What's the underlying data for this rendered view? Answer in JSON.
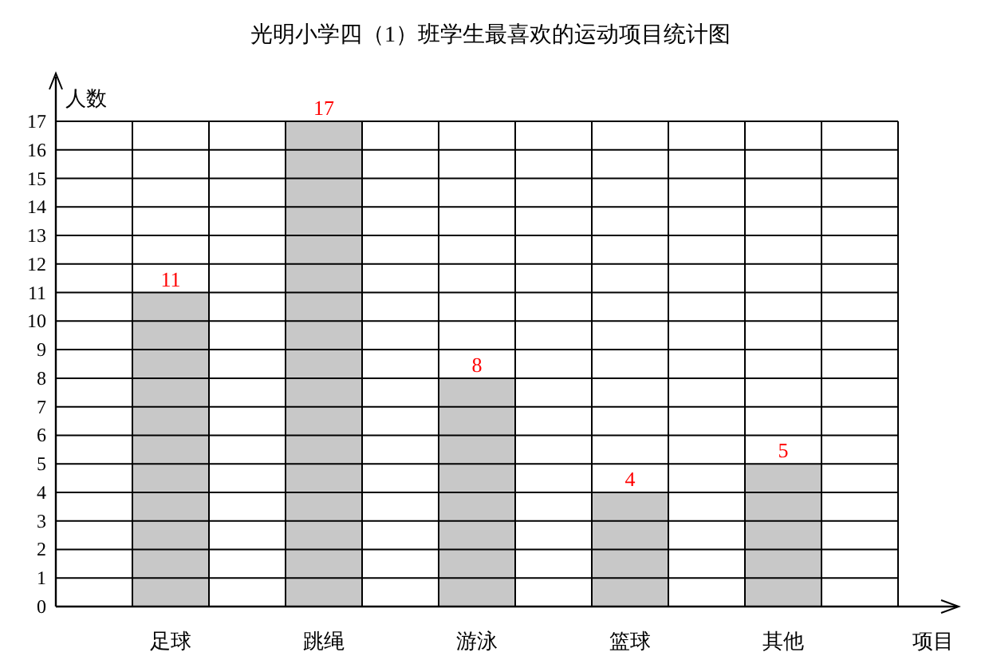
{
  "chart_data": {
    "type": "bar",
    "title": "光明小学四（1）班学生最喜欢的运动项目统计图",
    "xlabel": "项目",
    "ylabel": "人数",
    "categories": [
      null,
      "足球",
      null,
      "跳绳",
      null,
      "游泳",
      null,
      "篮球",
      null,
      "其他",
      null
    ],
    "values": [
      null,
      11,
      null,
      17,
      null,
      8,
      null,
      4,
      null,
      5,
      null
    ],
    "color": "#c8c8c8",
    "ylim": [
      0,
      17
    ],
    "yticks": [
      0,
      1,
      2,
      3,
      4,
      5,
      6,
      7,
      8,
      9,
      10,
      11,
      12,
      13,
      14,
      15,
      16,
      17
    ],
    "grid": true,
    "data_labels": true
  }
}
